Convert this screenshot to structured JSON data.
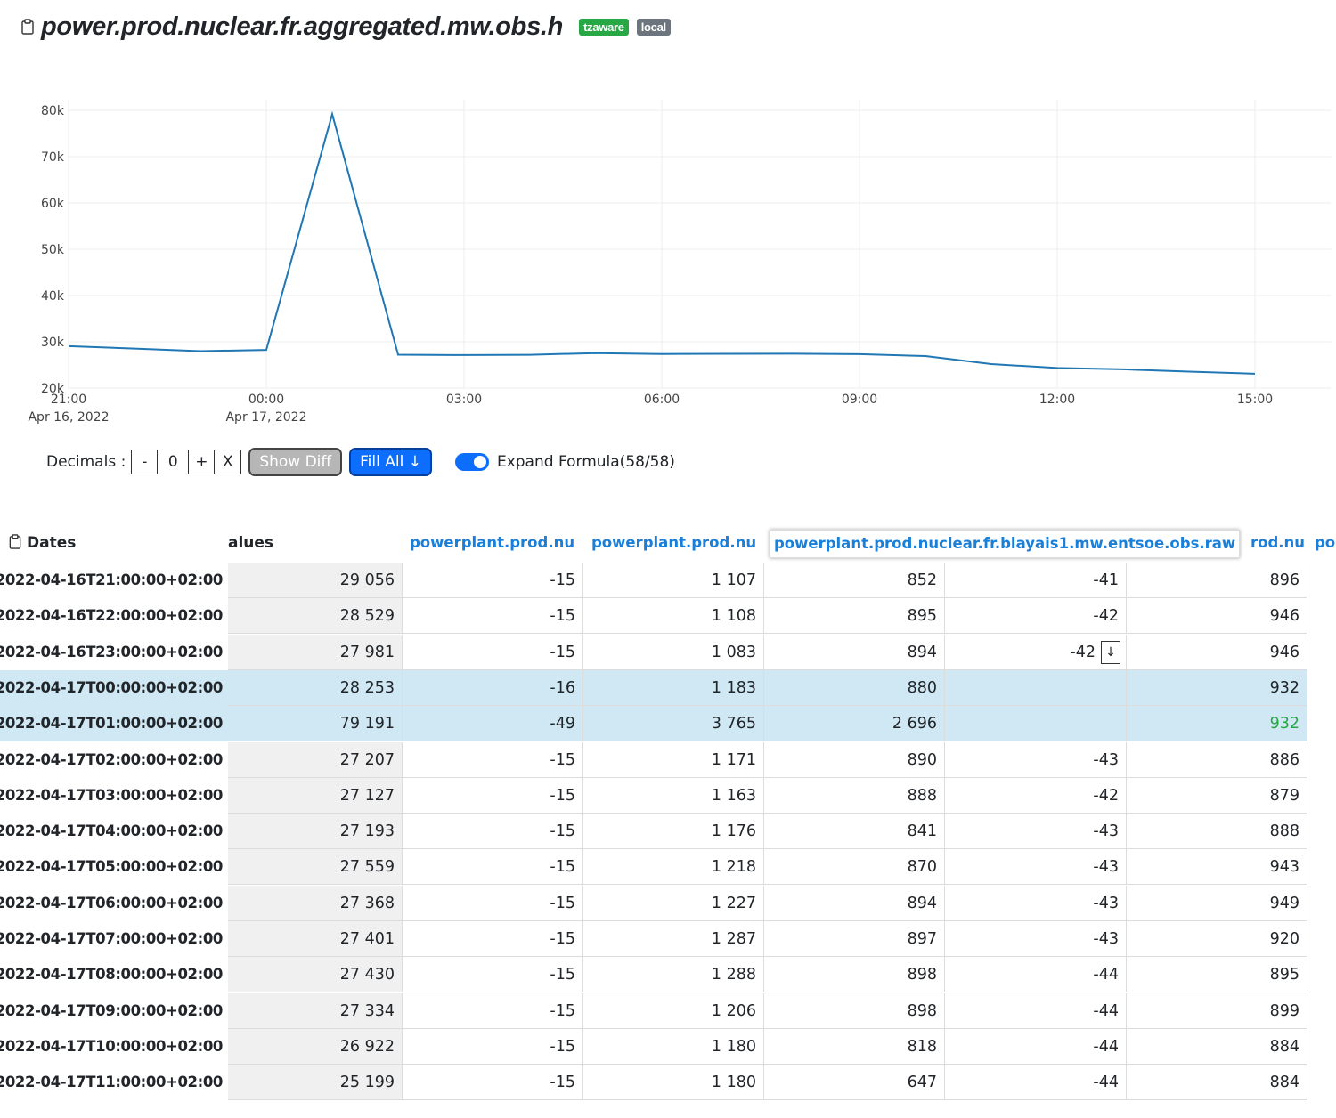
{
  "title": {
    "text": "power.prod.nuclear.fr.aggregated.mw.obs.h",
    "badges": [
      {
        "label": "tzaware",
        "color": "#28a745"
      },
      {
        "label": "local",
        "color": "#6c757d"
      }
    ]
  },
  "chart_data": {
    "type": "line",
    "series": [
      {
        "color": "#1f77b4",
        "x": [
          "2022-04-16T21:00",
          "2022-04-16T22:00",
          "2022-04-16T23:00",
          "2022-04-17T00:00",
          "2022-04-17T01:00",
          "2022-04-17T02:00",
          "2022-04-17T03:00",
          "2022-04-17T04:00",
          "2022-04-17T05:00",
          "2022-04-17T06:00",
          "2022-04-17T07:00",
          "2022-04-17T08:00",
          "2022-04-17T09:00",
          "2022-04-17T10:00",
          "2022-04-17T11:00",
          "2022-04-17T12:00",
          "2022-04-17T13:00",
          "2022-04-17T14:00",
          "2022-04-17T15:00"
        ],
        "values": [
          29056,
          28529,
          27981,
          28253,
          79191,
          27207,
          27127,
          27193,
          27559,
          27368,
          27401,
          27430,
          27334,
          26922,
          25199,
          24350,
          24050,
          23550,
          23100
        ]
      }
    ],
    "y_ticks": [
      "80k",
      "70k",
      "60k",
      "50k",
      "40k",
      "30k",
      "20k"
    ],
    "y_range": [
      20000,
      80000
    ],
    "x_ticks": [
      {
        "time": "21:00",
        "date": "Apr 16, 2022"
      },
      {
        "time": "00:00",
        "date": "Apr 17, 2022"
      },
      {
        "time": "03:00",
        "date": ""
      },
      {
        "time": "06:00",
        "date": ""
      },
      {
        "time": "09:00",
        "date": ""
      },
      {
        "time": "12:00",
        "date": ""
      },
      {
        "time": "15:00",
        "date": ""
      }
    ],
    "grid": true
  },
  "controls": {
    "decimals_label": "Decimals :",
    "minus": "-",
    "value": "0",
    "plus": "+",
    "clear": "X",
    "show_diff": "Show Diff",
    "fill_all": "Fill All ↓",
    "expand_label": "Expand Formula(58/58)",
    "expand_on": true
  },
  "table": {
    "headers": {
      "dates": "Dates",
      "values": "alues",
      "col1": "powerplant.prod.nu",
      "col2": "powerplant.prod.nu",
      "col3": "powerplant.prod.nuclear.fr.blayais1.mw.entsoe.obs.raw",
      "col5": "rod.nu",
      "col6": "po"
    },
    "rows": [
      {
        "date": "2022-04-16T21:00:00+02:00",
        "v": [
          "29 056",
          "-15",
          "1 107",
          "852",
          "-41",
          "896"
        ]
      },
      {
        "date": "2022-04-16T22:00:00+02:00",
        "v": [
          "28 529",
          "-15",
          "1 108",
          "895",
          "-42",
          "946"
        ]
      },
      {
        "date": "2022-04-16T23:00:00+02:00",
        "v": [
          "27 981",
          "-15",
          "1 083",
          "894",
          "-42",
          "946"
        ],
        "fill": "↓"
      },
      {
        "date": "2022-04-17T00:00:00+02:00",
        "v": [
          "28 253",
          "-16",
          "1 183",
          "880",
          "",
          "932"
        ],
        "selected": true
      },
      {
        "date": "2022-04-17T01:00:00+02:00",
        "v": [
          "79 191",
          "-49",
          "3 765",
          "2 696",
          "",
          "932"
        ],
        "selected": true,
        "green_last": true
      },
      {
        "date": "2022-04-17T02:00:00+02:00",
        "v": [
          "27 207",
          "-15",
          "1 171",
          "890",
          "-43",
          "886"
        ]
      },
      {
        "date": "2022-04-17T03:00:00+02:00",
        "v": [
          "27 127",
          "-15",
          "1 163",
          "888",
          "-42",
          "879"
        ]
      },
      {
        "date": "2022-04-17T04:00:00+02:00",
        "v": [
          "27 193",
          "-15",
          "1 176",
          "841",
          "-43",
          "888"
        ]
      },
      {
        "date": "2022-04-17T05:00:00+02:00",
        "v": [
          "27 559",
          "-15",
          "1 218",
          "870",
          "-43",
          "943"
        ]
      },
      {
        "date": "2022-04-17T06:00:00+02:00",
        "v": [
          "27 368",
          "-15",
          "1 227",
          "894",
          "-43",
          "949"
        ]
      },
      {
        "date": "2022-04-17T07:00:00+02:00",
        "v": [
          "27 401",
          "-15",
          "1 287",
          "897",
          "-43",
          "920"
        ]
      },
      {
        "date": "2022-04-17T08:00:00+02:00",
        "v": [
          "27 430",
          "-15",
          "1 288",
          "898",
          "-44",
          "895"
        ]
      },
      {
        "date": "2022-04-17T09:00:00+02:00",
        "v": [
          "27 334",
          "-15",
          "1 206",
          "898",
          "-44",
          "899"
        ]
      },
      {
        "date": "2022-04-17T10:00:00+02:00",
        "v": [
          "26 922",
          "-15",
          "1 180",
          "818",
          "-44",
          "884"
        ]
      },
      {
        "date": "2022-04-17T11:00:00+02:00",
        "v": [
          "25 199",
          "-15",
          "1 180",
          "647",
          "-44",
          "884"
        ]
      }
    ]
  }
}
